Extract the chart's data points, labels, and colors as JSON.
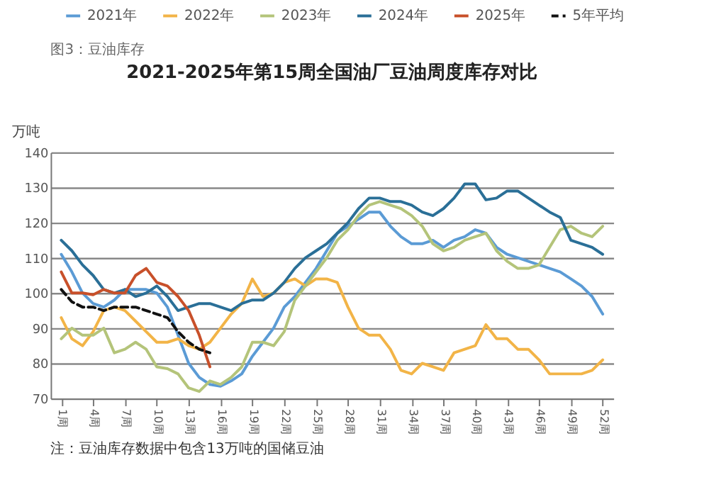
{
  "chart_data": {
    "type": "line",
    "title": "2021-2025年第15周全国油厂豆油周度库存对比",
    "ylabel": "万吨",
    "annotations": [
      "图3：豆油库存",
      "注：豆油库存数据中包含13万吨的国储豆油"
    ],
    "x": [
      1,
      2,
      3,
      4,
      5,
      6,
      7,
      8,
      9,
      10,
      11,
      12,
      13,
      14,
      15,
      16,
      17,
      18,
      19,
      20,
      21,
      22,
      23,
      24,
      25,
      26,
      27,
      28,
      29,
      30,
      31,
      32,
      33,
      34,
      35,
      36,
      37,
      38,
      39,
      40,
      41,
      42,
      43,
      44,
      45,
      46,
      47,
      48,
      49,
      50,
      51,
      52
    ],
    "xlim": [
      0,
      53
    ],
    "xticks": [
      {
        "value": 1,
        "label": "1周"
      },
      {
        "value": 4,
        "label": "4周"
      },
      {
        "value": 7,
        "label": "7周"
      },
      {
        "value": 10,
        "label": "10周"
      },
      {
        "value": 13,
        "label": "13周"
      },
      {
        "value": 16,
        "label": "16周"
      },
      {
        "value": 19,
        "label": "19周"
      },
      {
        "value": 22,
        "label": "22周"
      },
      {
        "value": 25,
        "label": "25周"
      },
      {
        "value": 28,
        "label": "28周"
      },
      {
        "value": 31,
        "label": "31周"
      },
      {
        "value": 34,
        "label": "34周"
      },
      {
        "value": 37,
        "label": "37周"
      },
      {
        "value": 40,
        "label": "40周"
      },
      {
        "value": 43,
        "label": "43周"
      },
      {
        "value": 46,
        "label": "46周"
      },
      {
        "value": 49,
        "label": "49周"
      },
      {
        "value": 52,
        "label": "52周"
      }
    ],
    "ylim": [
      70,
      140
    ],
    "yticks": [
      70,
      80,
      90,
      100,
      110,
      120,
      130,
      140
    ],
    "grid": "y",
    "legend": "top",
    "series": [
      {
        "name": "2021年",
        "color": "#5b9bd5",
        "values": [
          111,
          106,
          100,
          97,
          96,
          98,
          101,
          101,
          101,
          100,
          96,
          88,
          80,
          76,
          74,
          73.5,
          75,
          77,
          82,
          86,
          90,
          96,
          99,
          103,
          107,
          112,
          117,
          119,
          121,
          123,
          123,
          119,
          116,
          114,
          114,
          115,
          113,
          115,
          116,
          118,
          117,
          113,
          111,
          110,
          109,
          108,
          107,
          106,
          104,
          102,
          99,
          94
        ]
      },
      {
        "name": "2022年",
        "color": "#f2b447",
        "values": [
          93,
          87,
          85,
          89,
          95,
          96,
          95,
          92,
          89,
          86,
          86,
          87,
          85,
          84,
          86,
          90,
          94,
          97,
          104,
          99,
          100,
          103,
          104,
          102,
          104,
          104,
          103,
          96,
          90,
          88,
          88,
          84,
          78,
          77,
          80,
          79,
          78,
          83,
          84,
          85,
          91,
          87,
          87,
          84,
          84,
          81,
          77,
          77,
          77,
          77,
          78,
          81
        ]
      },
      {
        "name": "2023年",
        "color": "#b4c47a",
        "values": [
          87,
          90,
          88,
          88,
          90,
          83,
          84,
          86,
          84,
          79,
          78.5,
          77,
          73,
          72,
          75,
          74,
          76,
          79,
          86,
          86,
          85,
          89,
          98,
          102,
          106,
          110,
          115,
          118,
          122,
          125,
          126,
          125,
          124,
          122,
          119,
          114,
          112,
          113,
          115,
          116,
          117,
          112,
          109,
          107,
          107,
          108,
          113,
          118,
          119,
          117,
          116,
          119
        ]
      },
      {
        "name": "2024年",
        "color": "#2a6f97",
        "values": [
          115,
          112,
          108,
          105,
          101,
          100,
          101,
          99,
          100,
          102,
          99,
          95,
          96,
          97,
          97,
          96,
          95,
          97,
          98,
          98,
          100,
          103,
          107,
          110,
          112,
          114,
          117,
          120,
          124,
          127,
          127,
          126,
          126,
          125,
          123,
          122,
          124,
          127,
          131,
          131,
          126.5,
          127,
          129,
          129,
          127,
          125,
          123,
          121.5,
          115,
          114,
          113,
          111
        ]
      },
      {
        "name": "2025年",
        "color": "#c8502a",
        "values": [
          106,
          100,
          100,
          99.5,
          101,
          100,
          100,
          105,
          107,
          103,
          102,
          99,
          95,
          88,
          79,
          null,
          null,
          null,
          null,
          null,
          null,
          null,
          null,
          null,
          null,
          null,
          null,
          null,
          null,
          null,
          null,
          null,
          null,
          null,
          null,
          null,
          null,
          null,
          null,
          null,
          null,
          null,
          null,
          null,
          null,
          null,
          null,
          null,
          null,
          null,
          null,
          null
        ]
      },
      {
        "name": "5年平均",
        "color": "#111111",
        "line_style": "dashed",
        "values": [
          101,
          97.5,
          96,
          96,
          95,
          96,
          96,
          96,
          95,
          94,
          93,
          89,
          86,
          84,
          83,
          null,
          null,
          null,
          null,
          null,
          null,
          null,
          null,
          null,
          null,
          null,
          null,
          null,
          null,
          null,
          null,
          null,
          null,
          null,
          null,
          null,
          null,
          null,
          null,
          null,
          null,
          null,
          null,
          null,
          null,
          null,
          null,
          null,
          null,
          null,
          null,
          null
        ]
      }
    ]
  }
}
